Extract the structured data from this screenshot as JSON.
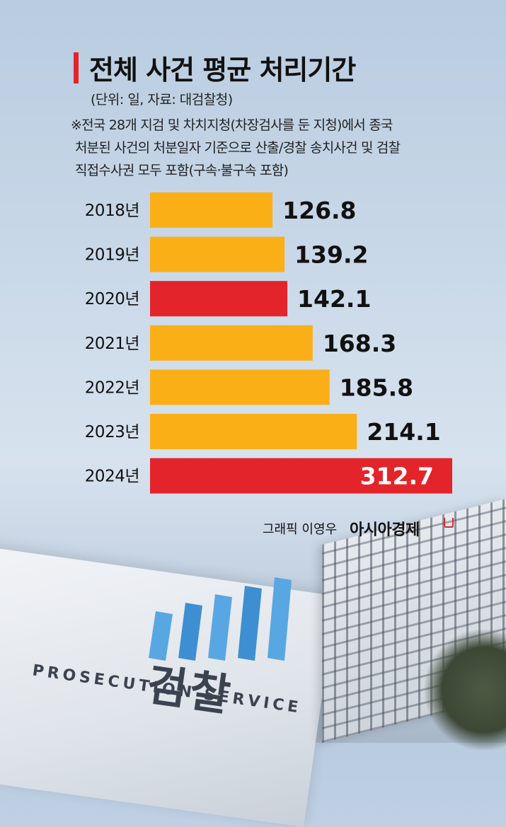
{
  "title": "전체 사건 평균 처리기간",
  "unit_source": "(단위: 일, 자료: 대검찰청)",
  "note_lines": [
    "※전국 28개 지검 및 차치지청(차장검사를 둔 지청)에서 종국",
    "처분된 사건의 처분일자 기준으로 산출/경찰 송치사건 및 검찰",
    "직접수사권 모두 포함(구속·불구속 포함)"
  ],
  "credit": "그래픽 이영우",
  "brand": "아시아경제",
  "background_sign": {
    "korean": "검찰",
    "english": "PROSECUTION SERVICE"
  },
  "colors": {
    "default_bar": "#fbaf17",
    "highlight_bar": "#e3242b",
    "title_accent": "#e3242b"
  },
  "chart_data": {
    "type": "bar",
    "orientation": "horizontal",
    "title": "전체 사건 평균 처리기간",
    "xlabel": "",
    "ylabel": "",
    "unit": "일",
    "categories": [
      "2018년",
      "2019년",
      "2020년",
      "2021년",
      "2022년",
      "2023년",
      "2024년"
    ],
    "values": [
      126.8,
      139.2,
      142.1,
      168.3,
      185.8,
      214.1,
      312.7
    ],
    "value_labels": [
      "126.8",
      "139.2",
      "142.1",
      "168.3",
      "185.8",
      "214.1",
      "312.7"
    ],
    "highlighted": [
      "2020년",
      "2024년"
    ],
    "xlim": [
      0,
      312.7
    ],
    "grid": false,
    "legend": "none"
  }
}
